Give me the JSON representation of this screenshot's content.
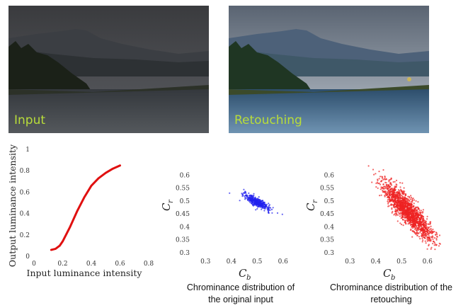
{
  "photos": {
    "input_label": "Input",
    "retouch_label": "Retouching"
  },
  "colors": {
    "curve": "#e01010",
    "input_scatter": "#2222ee",
    "retouch_scatter": "#ee2222",
    "photo_label": "#b8dc3a"
  },
  "chart_data": [
    {
      "type": "line",
      "xlabel": "Input luminance intensity",
      "ylabel": "Output luminance intensity",
      "xlim": [
        0,
        0.8
      ],
      "ylim": [
        0,
        1
      ],
      "xticks": [
        "0",
        "0.2",
        "0.4",
        "0.6",
        "0.8"
      ],
      "yticks": [
        "0",
        "0.2",
        "0.4",
        "0.6",
        "0.8",
        "1"
      ],
      "x": [
        0.12,
        0.15,
        0.18,
        0.2,
        0.25,
        0.3,
        0.35,
        0.4,
        0.45,
        0.5,
        0.55,
        0.6
      ],
      "y": [
        0.06,
        0.07,
        0.1,
        0.14,
        0.27,
        0.42,
        0.55,
        0.66,
        0.73,
        0.78,
        0.82,
        0.85
      ]
    },
    {
      "type": "scatter",
      "caption": "Chrominance distribution of the original input",
      "xlabel_main": "C",
      "xlabel_sub": "b",
      "ylabel_main": "C",
      "ylabel_sub": "r",
      "xlim": [
        0.25,
        0.65
      ],
      "ylim": [
        0.3,
        0.65
      ],
      "xticks": [
        "0.3",
        "0.4",
        "0.5",
        "0.6"
      ],
      "yticks": [
        "0.3",
        "0.35",
        "0.4",
        "0.45",
        "0.5",
        "0.55",
        "0.6"
      ],
      "cluster": {
        "cx": 0.5,
        "cy": 0.495,
        "sx": 0.025,
        "sy": 0.015,
        "corr": -0.85,
        "n": 450
      }
    },
    {
      "type": "scatter",
      "caption": "Chrominance distribution of the retouching",
      "xlabel_main": "C",
      "xlabel_sub": "b",
      "ylabel_main": "C",
      "ylabel_sub": "r",
      "xlim": [
        0.25,
        0.65
      ],
      "ylim": [
        0.3,
        0.65
      ],
      "xticks": [
        "0.3",
        "0.4",
        "0.5",
        "0.6"
      ],
      "yticks": [
        "0.3",
        "0.35",
        "0.4",
        "0.45",
        "0.5",
        "0.55",
        "0.6"
      ],
      "cluster": {
        "cx": 0.525,
        "cy": 0.46,
        "sx": 0.048,
        "sy": 0.055,
        "corr": -0.88,
        "n": 1600
      }
    }
  ],
  "captions": {
    "left": [
      "Chrominance distribution of",
      "the original input"
    ],
    "right": [
      "Chrominance distribution of the",
      "retouching"
    ]
  }
}
